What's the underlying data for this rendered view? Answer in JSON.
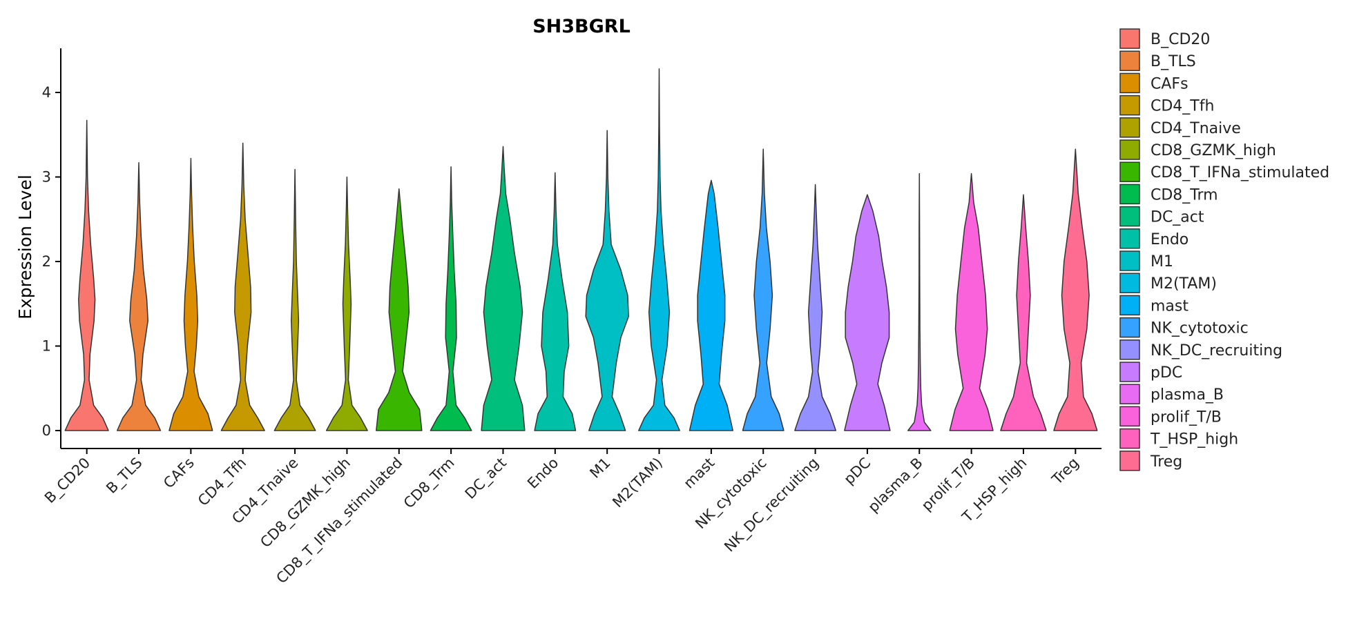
{
  "chart_data": {
    "type": "violin",
    "title": "SH3BGRL",
    "xlabel": "",
    "ylabel": "Expression Level",
    "ylim": [
      0,
      4.5
    ],
    "yticks": [
      0,
      1,
      2,
      3,
      4
    ],
    "grid": false,
    "legend_position": "right",
    "categories": [
      "B_CD20",
      "B_TLS",
      "CAFs",
      "CD4_Tfh",
      "CD4_Tnaive",
      "CD8_GZMK_high",
      "CD8_T_IFNa_stimulated",
      "CD8_Trm",
      "DC_act",
      "Endo",
      "M1",
      "M2(TAM)",
      "mast",
      "NK_cytotoxic",
      "NK_DC_recruiting",
      "pDC",
      "plasma_B",
      "prolif_T/B",
      "T_HSP_high",
      "Treg"
    ],
    "colors": [
      "#F8766D",
      "#EC823C",
      "#DB8E00",
      "#C49A00",
      "#AEA200",
      "#8FAA00",
      "#39B600",
      "#00BB4E",
      "#00BF7D",
      "#00C1A7",
      "#00BFC4",
      "#00BAE0",
      "#00B0F6",
      "#35A2FF",
      "#9590FF",
      "#C77CFF",
      "#E76BF3",
      "#FA62DB",
      "#FF62BC",
      "#FF6C91"
    ],
    "violins": [
      {
        "max": 3.67,
        "profile": [
          [
            0,
            0.95
          ],
          [
            0.15,
            0.7
          ],
          [
            0.3,
            0.3
          ],
          [
            0.6,
            0.1
          ],
          [
            0.9,
            0.14
          ],
          [
            1.3,
            0.32
          ],
          [
            1.55,
            0.36
          ],
          [
            1.8,
            0.3
          ],
          [
            2.2,
            0.17
          ],
          [
            2.6,
            0.08
          ],
          [
            3.0,
            0.03
          ],
          [
            3.67,
            0
          ]
        ]
      },
      {
        "max": 3.17,
        "profile": [
          [
            0,
            0.95
          ],
          [
            0.15,
            0.7
          ],
          [
            0.3,
            0.3
          ],
          [
            0.6,
            0.1
          ],
          [
            0.9,
            0.18
          ],
          [
            1.3,
            0.4
          ],
          [
            1.55,
            0.35
          ],
          [
            1.9,
            0.2
          ],
          [
            2.3,
            0.1
          ],
          [
            2.7,
            0.04
          ],
          [
            3.17,
            0
          ]
        ]
      },
      {
        "max": 3.22,
        "profile": [
          [
            0,
            0.95
          ],
          [
            0.2,
            0.75
          ],
          [
            0.4,
            0.35
          ],
          [
            0.7,
            0.14
          ],
          [
            1.0,
            0.24
          ],
          [
            1.3,
            0.3
          ],
          [
            1.6,
            0.26
          ],
          [
            2.0,
            0.15
          ],
          [
            2.4,
            0.08
          ],
          [
            2.8,
            0.03
          ],
          [
            3.22,
            0
          ]
        ]
      },
      {
        "max": 3.4,
        "profile": [
          [
            0,
            0.95
          ],
          [
            0.15,
            0.65
          ],
          [
            0.3,
            0.3
          ],
          [
            0.6,
            0.1
          ],
          [
            1.0,
            0.2
          ],
          [
            1.4,
            0.36
          ],
          [
            1.7,
            0.34
          ],
          [
            2.1,
            0.22
          ],
          [
            2.5,
            0.1
          ],
          [
            2.9,
            0.04
          ],
          [
            3.4,
            0
          ]
        ]
      },
      {
        "max": 3.09,
        "profile": [
          [
            0,
            0.9
          ],
          [
            0.15,
            0.6
          ],
          [
            0.3,
            0.22
          ],
          [
            0.6,
            0.06
          ],
          [
            1.0,
            0.12
          ],
          [
            1.3,
            0.16
          ],
          [
            1.6,
            0.12
          ],
          [
            2.0,
            0.06
          ],
          [
            2.5,
            0.03
          ],
          [
            3.09,
            0
          ]
        ]
      },
      {
        "max": 3.0,
        "profile": [
          [
            0,
            0.9
          ],
          [
            0.15,
            0.6
          ],
          [
            0.3,
            0.22
          ],
          [
            0.6,
            0.06
          ],
          [
            1.0,
            0.12
          ],
          [
            1.5,
            0.18
          ],
          [
            1.8,
            0.14
          ],
          [
            2.2,
            0.07
          ],
          [
            2.6,
            0.03
          ],
          [
            3.0,
            0
          ]
        ]
      },
      {
        "max": 2.86,
        "profile": [
          [
            0,
            1.0
          ],
          [
            0.25,
            0.9
          ],
          [
            0.45,
            0.45
          ],
          [
            0.7,
            0.16
          ],
          [
            1.0,
            0.28
          ],
          [
            1.4,
            0.44
          ],
          [
            1.7,
            0.4
          ],
          [
            2.0,
            0.3
          ],
          [
            2.4,
            0.15
          ],
          [
            2.86,
            0
          ]
        ]
      },
      {
        "max": 3.12,
        "profile": [
          [
            0,
            0.9
          ],
          [
            0.15,
            0.6
          ],
          [
            0.3,
            0.22
          ],
          [
            0.7,
            0.08
          ],
          [
            1.1,
            0.24
          ],
          [
            1.5,
            0.22
          ],
          [
            1.9,
            0.14
          ],
          [
            2.3,
            0.08
          ],
          [
            2.7,
            0.03
          ],
          [
            3.12,
            0
          ]
        ]
      },
      {
        "max": 3.36,
        "profile": [
          [
            0,
            0.95
          ],
          [
            0.3,
            0.85
          ],
          [
            0.6,
            0.5
          ],
          [
            1.0,
            0.7
          ],
          [
            1.4,
            0.85
          ],
          [
            1.7,
            0.75
          ],
          [
            2.1,
            0.5
          ],
          [
            2.5,
            0.3
          ],
          [
            2.8,
            0.12
          ],
          [
            3.1,
            0.05
          ],
          [
            3.36,
            0
          ]
        ]
      },
      {
        "max": 3.05,
        "profile": [
          [
            0,
            0.9
          ],
          [
            0.2,
            0.75
          ],
          [
            0.4,
            0.35
          ],
          [
            0.7,
            0.4
          ],
          [
            1.0,
            0.6
          ],
          [
            1.4,
            0.54
          ],
          [
            1.8,
            0.3
          ],
          [
            2.2,
            0.1
          ],
          [
            2.6,
            0.04
          ],
          [
            3.05,
            0
          ]
        ]
      },
      {
        "max": 3.55,
        "profile": [
          [
            0,
            0.8
          ],
          [
            0.2,
            0.55
          ],
          [
            0.4,
            0.22
          ],
          [
            0.8,
            0.4
          ],
          [
            1.1,
            0.6
          ],
          [
            1.35,
            0.94
          ],
          [
            1.6,
            0.9
          ],
          [
            1.9,
            0.6
          ],
          [
            2.2,
            0.18
          ],
          [
            2.6,
            0.08
          ],
          [
            3.0,
            0.03
          ],
          [
            3.55,
            0
          ]
        ]
      },
      {
        "max": 4.28,
        "profile": [
          [
            0,
            0.9
          ],
          [
            0.15,
            0.65
          ],
          [
            0.3,
            0.25
          ],
          [
            0.6,
            0.12
          ],
          [
            1.0,
            0.35
          ],
          [
            1.4,
            0.45
          ],
          [
            1.8,
            0.33
          ],
          [
            2.2,
            0.18
          ],
          [
            2.6,
            0.08
          ],
          [
            3.0,
            0.04
          ],
          [
            3.6,
            0.015
          ],
          [
            4.28,
            0
          ]
        ]
      },
      {
        "max": 2.96,
        "profile": [
          [
            0,
            0.95
          ],
          [
            0.3,
            0.7
          ],
          [
            0.55,
            0.35
          ],
          [
            0.9,
            0.45
          ],
          [
            1.3,
            0.6
          ],
          [
            1.6,
            0.6
          ],
          [
            2.0,
            0.45
          ],
          [
            2.4,
            0.3
          ],
          [
            2.8,
            0.13
          ],
          [
            2.96,
            0
          ]
        ]
      },
      {
        "max": 3.33,
        "profile": [
          [
            0,
            0.9
          ],
          [
            0.2,
            0.7
          ],
          [
            0.4,
            0.35
          ],
          [
            0.8,
            0.15
          ],
          [
            1.2,
            0.3
          ],
          [
            1.6,
            0.4
          ],
          [
            2.0,
            0.3
          ],
          [
            2.4,
            0.14
          ],
          [
            2.8,
            0.05
          ],
          [
            3.33,
            0
          ]
        ]
      },
      {
        "max": 2.91,
        "profile": [
          [
            0,
            0.9
          ],
          [
            0.2,
            0.65
          ],
          [
            0.4,
            0.3
          ],
          [
            0.7,
            0.12
          ],
          [
            1.0,
            0.22
          ],
          [
            1.4,
            0.3
          ],
          [
            1.8,
            0.2
          ],
          [
            2.2,
            0.1
          ],
          [
            2.6,
            0.04
          ],
          [
            2.91,
            0
          ]
        ]
      },
      {
        "max": 2.79,
        "profile": [
          [
            0,
            1.0
          ],
          [
            0.3,
            0.74
          ],
          [
            0.55,
            0.46
          ],
          [
            0.8,
            0.64
          ],
          [
            1.1,
            0.96
          ],
          [
            1.4,
            0.96
          ],
          [
            1.7,
            0.84
          ],
          [
            2.0,
            0.65
          ],
          [
            2.3,
            0.5
          ],
          [
            2.6,
            0.24
          ],
          [
            2.79,
            0
          ]
        ]
      },
      {
        "max": 3.04,
        "profile": [
          [
            0,
            0.5
          ],
          [
            0.1,
            0.22
          ],
          [
            0.3,
            0.1
          ],
          [
            0.5,
            0.06
          ],
          [
            0.8,
            0.04
          ],
          [
            1.2,
            0.025
          ],
          [
            1.8,
            0.015
          ],
          [
            2.4,
            0.01
          ],
          [
            3.04,
            0
          ]
        ]
      },
      {
        "max": 3.04,
        "profile": [
          [
            0,
            0.95
          ],
          [
            0.25,
            0.72
          ],
          [
            0.5,
            0.36
          ],
          [
            0.9,
            0.6
          ],
          [
            1.2,
            0.7
          ],
          [
            1.6,
            0.62
          ],
          [
            2.0,
            0.46
          ],
          [
            2.4,
            0.3
          ],
          [
            2.7,
            0.1
          ],
          [
            3.04,
            0
          ]
        ]
      },
      {
        "max": 2.79,
        "profile": [
          [
            0,
            1.0
          ],
          [
            0.2,
            0.76
          ],
          [
            0.4,
            0.44
          ],
          [
            0.8,
            0.14
          ],
          [
            1.2,
            0.22
          ],
          [
            1.6,
            0.3
          ],
          [
            2.0,
            0.22
          ],
          [
            2.4,
            0.1
          ],
          [
            2.79,
            0
          ]
        ]
      },
      {
        "max": 3.33,
        "profile": [
          [
            0,
            0.95
          ],
          [
            0.2,
            0.72
          ],
          [
            0.4,
            0.35
          ],
          [
            0.8,
            0.25
          ],
          [
            1.2,
            0.5
          ],
          [
            1.6,
            0.6
          ],
          [
            2.0,
            0.5
          ],
          [
            2.4,
            0.3
          ],
          [
            2.8,
            0.12
          ],
          [
            3.33,
            0
          ]
        ]
      }
    ]
  }
}
